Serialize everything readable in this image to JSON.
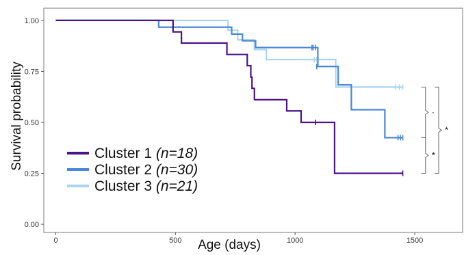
{
  "chart_data": {
    "type": "line",
    "subtype": "kaplan-meier step curve",
    "title": "",
    "xlabel": "Age (days)",
    "ylabel": "Survival probability",
    "xlim": [
      -50,
      1700
    ],
    "ylim": [
      -0.04,
      1.06
    ],
    "x_ticks": [
      0,
      500,
      1000,
      1500
    ],
    "y_ticks": [
      0.0,
      0.25,
      0.5,
      0.75,
      1.0
    ],
    "y_tick_labels": [
      "0.00",
      "0.25",
      "0.50",
      "0.75",
      "1.00"
    ],
    "grid": false,
    "legend_position": "bottom-left",
    "series": [
      {
        "name": "Cluster 1",
        "n_label": "(n=18)",
        "color": "#4b1388",
        "steps": [
          [
            0,
            1.0
          ],
          [
            490,
            0.944
          ],
          [
            525,
            0.889
          ],
          [
            715,
            0.833
          ],
          [
            800,
            0.778
          ],
          [
            815,
            0.722
          ],
          [
            820,
            0.667
          ],
          [
            830,
            0.611
          ],
          [
            965,
            0.556
          ],
          [
            1025,
            0.5
          ],
          [
            1165,
            0.25
          ]
        ],
        "end_x": 1450,
        "censor_marks": [
          [
            1085,
            0.5
          ],
          [
            1450,
            0.25
          ]
        ]
      },
      {
        "name": "Cluster 2",
        "n_label": "(n=30)",
        "color": "#4a87d8",
        "steps": [
          [
            0,
            1.0
          ],
          [
            430,
            0.967
          ],
          [
            735,
            0.933
          ],
          [
            780,
            0.9
          ],
          [
            835,
            0.867
          ],
          [
            1095,
            0.774
          ],
          [
            1180,
            0.684
          ],
          [
            1235,
            0.562
          ],
          [
            1375,
            0.425
          ]
        ],
        "end_x": 1450,
        "censor_marks": [
          [
            1070,
            0.867
          ],
          [
            1075,
            0.867
          ],
          [
            1085,
            0.867
          ],
          [
            1090,
            0.774
          ],
          [
            1430,
            0.425
          ],
          [
            1440,
            0.425
          ],
          [
            1450,
            0.425
          ]
        ]
      },
      {
        "name": "Cluster 3",
        "n_label": "(n=21)",
        "color": "#a9d6ee",
        "steps": [
          [
            0,
            1.0
          ],
          [
            720,
            0.952
          ],
          [
            760,
            0.905
          ],
          [
            830,
            0.857
          ],
          [
            880,
            0.808
          ],
          [
            1170,
            0.673
          ]
        ],
        "end_x": 1450,
        "censor_marks": [
          [
            1080,
            0.808
          ],
          [
            1090,
            0.808
          ],
          [
            1420,
            0.673
          ],
          [
            1435,
            0.673
          ],
          [
            1450,
            0.673
          ]
        ]
      }
    ],
    "significance": [
      {
        "between": "Cluster 2 vs Cluster 3",
        "label": "·"
      },
      {
        "between": "Cluster 1 vs Cluster 2",
        "label": "*"
      },
      {
        "between": "Cluster 1 vs Cluster 3",
        "label": "*"
      }
    ]
  }
}
